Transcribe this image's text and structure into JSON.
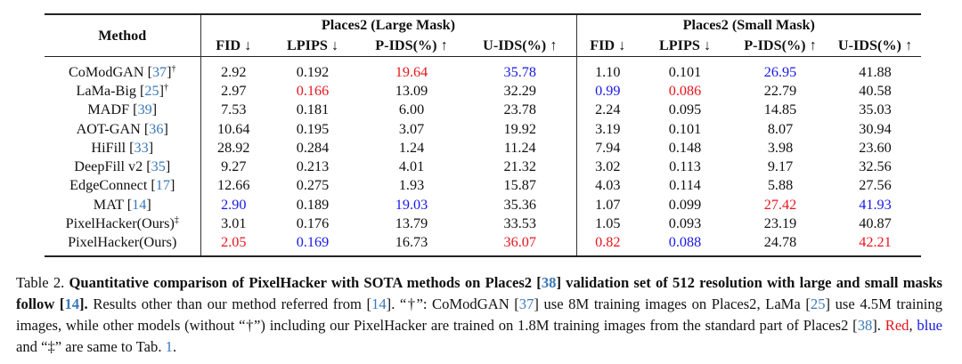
{
  "table": {
    "method_header": "Method",
    "group_large": "Places2 (Large Mask)",
    "group_small": "Places2 (Small Mask)",
    "metrics": [
      "FID ↓",
      "LPIPS ↓",
      "P-IDS(%) ↑",
      "U-IDS(%) ↑",
      "FID ↓",
      "LPIPS ↓",
      "P-IDS(%) ↑",
      "U-IDS(%) ↑"
    ],
    "rows": [
      {
        "name": "CoModGAN",
        "cite": "37",
        "mark": "†",
        "cells": [
          {
            "v": "2.92",
            "c": ""
          },
          {
            "v": "0.192",
            "c": ""
          },
          {
            "v": "19.64",
            "c": "red"
          },
          {
            "v": "35.78",
            "c": "blue"
          },
          {
            "v": "1.10",
            "c": ""
          },
          {
            "v": "0.101",
            "c": ""
          },
          {
            "v": "26.95",
            "c": "blue"
          },
          {
            "v": "41.88",
            "c": ""
          }
        ]
      },
      {
        "name": "LaMa-Big",
        "cite": "25",
        "mark": "†",
        "cells": [
          {
            "v": "2.97",
            "c": ""
          },
          {
            "v": "0.166",
            "c": "red"
          },
          {
            "v": "13.09",
            "c": ""
          },
          {
            "v": "32.29",
            "c": ""
          },
          {
            "v": "0.99",
            "c": "blue"
          },
          {
            "v": "0.086",
            "c": "red"
          },
          {
            "v": "22.79",
            "c": ""
          },
          {
            "v": "40.58",
            "c": ""
          }
        ]
      },
      {
        "name": "MADF",
        "cite": "39",
        "mark": "",
        "cells": [
          {
            "v": "7.53",
            "c": ""
          },
          {
            "v": "0.181",
            "c": ""
          },
          {
            "v": "6.00",
            "c": ""
          },
          {
            "v": "23.78",
            "c": ""
          },
          {
            "v": "2.24",
            "c": ""
          },
          {
            "v": "0.095",
            "c": ""
          },
          {
            "v": "14.85",
            "c": ""
          },
          {
            "v": "35.03",
            "c": ""
          }
        ]
      },
      {
        "name": "AOT-GAN",
        "cite": "36",
        "mark": "",
        "cells": [
          {
            "v": "10.64",
            "c": ""
          },
          {
            "v": "0.195",
            "c": ""
          },
          {
            "v": "3.07",
            "c": ""
          },
          {
            "v": "19.92",
            "c": ""
          },
          {
            "v": "3.19",
            "c": ""
          },
          {
            "v": "0.101",
            "c": ""
          },
          {
            "v": "8.07",
            "c": ""
          },
          {
            "v": "30.94",
            "c": ""
          }
        ]
      },
      {
        "name": "HiFill",
        "cite": "33",
        "mark": "",
        "cells": [
          {
            "v": "28.92",
            "c": ""
          },
          {
            "v": "0.284",
            "c": ""
          },
          {
            "v": "1.24",
            "c": ""
          },
          {
            "v": "11.24",
            "c": ""
          },
          {
            "v": "7.94",
            "c": ""
          },
          {
            "v": "0.148",
            "c": ""
          },
          {
            "v": "3.98",
            "c": ""
          },
          {
            "v": "23.60",
            "c": ""
          }
        ]
      },
      {
        "name": "DeepFill v2",
        "cite": "35",
        "mark": "",
        "cells": [
          {
            "v": "9.27",
            "c": ""
          },
          {
            "v": "0.213",
            "c": ""
          },
          {
            "v": "4.01",
            "c": ""
          },
          {
            "v": "21.32",
            "c": ""
          },
          {
            "v": "3.02",
            "c": ""
          },
          {
            "v": "0.113",
            "c": ""
          },
          {
            "v": "9.17",
            "c": ""
          },
          {
            "v": "32.56",
            "c": ""
          }
        ]
      },
      {
        "name": "EdgeConnect",
        "cite": "17",
        "mark": "",
        "cells": [
          {
            "v": "12.66",
            "c": ""
          },
          {
            "v": "0.275",
            "c": ""
          },
          {
            "v": "1.93",
            "c": ""
          },
          {
            "v": "15.87",
            "c": ""
          },
          {
            "v": "4.03",
            "c": ""
          },
          {
            "v": "0.114",
            "c": ""
          },
          {
            "v": "5.88",
            "c": ""
          },
          {
            "v": "27.56",
            "c": ""
          }
        ]
      },
      {
        "name": "MAT",
        "cite": "14",
        "mark": "",
        "cells": [
          {
            "v": "2.90",
            "c": "blue"
          },
          {
            "v": "0.189",
            "c": ""
          },
          {
            "v": "19.03",
            "c": "blue"
          },
          {
            "v": "35.36",
            "c": ""
          },
          {
            "v": "1.07",
            "c": ""
          },
          {
            "v": "0.099",
            "c": ""
          },
          {
            "v": "27.42",
            "c": "red"
          },
          {
            "v": "41.93",
            "c": "blue"
          }
        ]
      },
      {
        "name": "PixelHacker(Ours)",
        "cite": "",
        "mark": "‡",
        "cells": [
          {
            "v": "3.01",
            "c": ""
          },
          {
            "v": "0.176",
            "c": ""
          },
          {
            "v": "13.79",
            "c": ""
          },
          {
            "v": "33.53",
            "c": ""
          },
          {
            "v": "1.05",
            "c": ""
          },
          {
            "v": "0.093",
            "c": ""
          },
          {
            "v": "23.19",
            "c": ""
          },
          {
            "v": "40.87",
            "c": ""
          }
        ]
      },
      {
        "name": "PixelHacker(Ours)",
        "cite": "",
        "mark": "",
        "cells": [
          {
            "v": "2.05",
            "c": "red"
          },
          {
            "v": "0.169",
            "c": "blue"
          },
          {
            "v": "16.73",
            "c": ""
          },
          {
            "v": "36.07",
            "c": "red"
          },
          {
            "v": "0.82",
            "c": "red"
          },
          {
            "v": "0.088",
            "c": "blue"
          },
          {
            "v": "24.78",
            "c": ""
          },
          {
            "v": "42.21",
            "c": "red"
          }
        ]
      }
    ]
  },
  "caption": {
    "label": "Table 2.",
    "bold_a": "Quantitative comparison of PixelHacker with SOTA methods on Places2 [",
    "bold_ref_38": "38",
    "bold_b": "] validation set of 512 resolution with large and small masks follow [",
    "bold_ref_14": "14",
    "bold_c": "].",
    "t1": "Results other than our method referred from [",
    "ref_14": "14",
    "t2": "]. “†”: CoModGAN [",
    "ref_37": "37",
    "t3": "] use 8M training images on Places2, LaMa [",
    "ref_25": "25",
    "t4": "] use 4.5M training images, while other models (without “†”) including our PixelHacker are trained on 1.8M training images from the standard part of Places2 [",
    "ref_38": "38",
    "t5": "].",
    "red_word": "Red",
    "t6": ",",
    "blue_word": "blue",
    "t7": "and “‡” are same to Tab.",
    "ref_tab": "1",
    "t8": "."
  },
  "colors": {
    "red": "#e8141c",
    "blue": "#1618e8",
    "citation": "#3a78b8"
  }
}
